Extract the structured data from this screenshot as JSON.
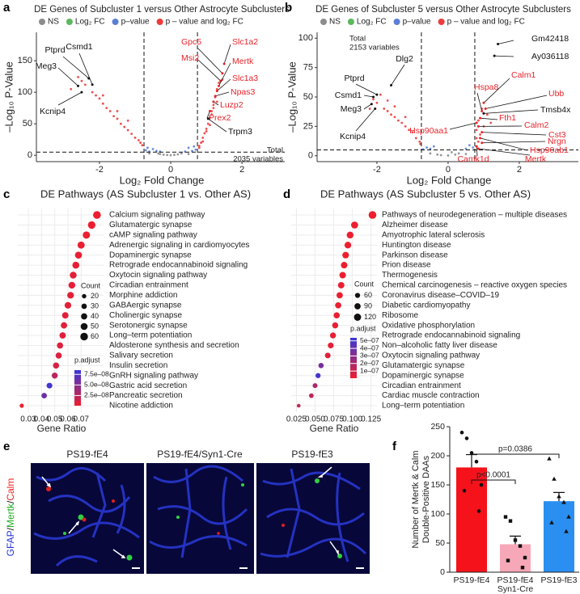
{
  "chart_data": [
    {
      "panel": "a",
      "type": "volcano",
      "title": "DE Genes of Subcluster 1 versus Other Astrocyte Subclusters",
      "xlabel": "Log₂ Fold Change",
      "ylabel": "–Log₁₀ P-Value",
      "xlim": [
        -3.77,
        3.2
      ],
      "ylim": [
        -10,
        195
      ],
      "xticks": [
        -2,
        0,
        2
      ],
      "yticks": [
        0,
        50,
        100,
        150
      ],
      "thresholds": {
        "x": [
          -0.75,
          0.75
        ],
        "y": 5
      },
      "series": [
        {
          "name": "NS",
          "color": "#8c8c8c",
          "x": [
            -0.3,
            -0.2,
            -0.1,
            0,
            0.1,
            0.2,
            0.3,
            -0.35,
            0.5,
            -0.6
          ],
          "y": [
            2,
            1,
            0.5,
            0.2,
            0.8,
            1.5,
            3,
            3,
            2,
            3
          ]
        },
        {
          "name": "Log₂ FC",
          "color": "#5cb85c",
          "x": [],
          "y": []
        },
        {
          "name": "p–value",
          "color": "#5b7fd6",
          "x": [
            -0.7,
            -0.6,
            -0.5,
            -0.4,
            -0.65,
            -0.3,
            0.7,
            0.6,
            0.5,
            0.4,
            0.65
          ],
          "y": [
            8,
            6,
            10,
            7,
            12,
            6,
            9,
            7,
            12,
            6,
            14
          ]
        },
        {
          "name": "p – value and log₂ FC",
          "color": "#ee3b3b",
          "x": [
            -2.6,
            -2.5,
            -2.4,
            -2.3,
            -2.2,
            -2.1,
            -2.0,
            -1.9,
            -1.8,
            -1.7,
            -1.6,
            -1.5,
            -1.4,
            -1.3,
            -1.2,
            -1.1,
            -1.0,
            -0.9,
            -0.85,
            -1.5,
            -1.2,
            -1.9,
            -0.8,
            -2.8,
            0.8,
            0.85,
            0.9,
            0.95,
            1.0,
            1.05,
            1.1,
            1.15,
            1.2,
            1.25,
            1.3,
            1.35,
            1.15,
            1.0,
            1.45,
            0.8,
            1.1,
            1.3,
            0.9,
            1.2
          ],
          "y": [
            124,
            118,
            112,
            122,
            100,
            95,
            90,
            82,
            75,
            70,
            62,
            58,
            50,
            45,
            40,
            34,
            28,
            24,
            20,
            70,
            55,
            95,
            16,
            105,
            12,
            20,
            28,
            35,
            42,
            50,
            60,
            70,
            80,
            92,
            105,
            115,
            65,
            38,
            120,
            15,
            48,
            85,
            22,
            75
          ]
        }
      ],
      "annotations": [
        {
          "text": "Ptprd",
          "x": -2.3,
          "y": 122,
          "color": "#111111"
        },
        {
          "text": "Csmd1",
          "x": -2.2,
          "y": 112,
          "color": "#111111"
        },
        {
          "text": "Meg3",
          "x": -2.6,
          "y": 110,
          "color": "#111111"
        },
        {
          "text": "Kcnip4",
          "x": -2.5,
          "y": 100,
          "color": "#111111"
        },
        {
          "text": "Gpc5",
          "x": 1.45,
          "y": 130,
          "color": "#e8242b"
        },
        {
          "text": "Slc1a2",
          "x": 1.5,
          "y": 145,
          "color": "#e8242b"
        },
        {
          "text": "Msi2",
          "x": 1.4,
          "y": 118,
          "color": "#e8242b"
        },
        {
          "text": "Mertk",
          "x": 1.35,
          "y": 110,
          "color": "#e8242b"
        },
        {
          "text": "Slc1a3",
          "x": 1.3,
          "y": 102,
          "color": "#e8242b"
        },
        {
          "text": "Npas3",
          "x": 1.25,
          "y": 94,
          "color": "#e8242b"
        },
        {
          "text": "Luzp2",
          "x": 1.2,
          "y": 85,
          "color": "#e8242b"
        },
        {
          "text": "Prex2",
          "x": 1.1,
          "y": 70,
          "color": "#e8242b"
        },
        {
          "text": "Trpm3",
          "x": 1.05,
          "y": 58,
          "color": "#111111"
        }
      ],
      "note": [
        "Total",
        "2035 variables"
      ]
    },
    {
      "panel": "b",
      "type": "volcano",
      "title": "DE Genes of Subcluster 5 versus Other Astrocyte Subclusters",
      "xlabel": "Log₂ Fold Change",
      "ylabel": "–Log₁₀ P-Value",
      "xlim": [
        -3.68,
        3.66
      ],
      "ylim": [
        -5,
        105
      ],
      "xticks": [
        -2,
        0,
        2
      ],
      "yticks": [
        0,
        25,
        50,
        75,
        100
      ],
      "thresholds": {
        "x": [
          -0.75,
          0.75
        ],
        "y": 5
      },
      "series": [
        {
          "name": "NS",
          "color": "#8c8c8c",
          "x": [
            -0.3,
            -0.2,
            0,
            0.2,
            0.3,
            0.1,
            -0.5,
            0.5
          ],
          "y": [
            1,
            0.5,
            0.2,
            1,
            2,
            3,
            2,
            1.5
          ]
        },
        {
          "name": "Log₂ FC",
          "color": "#5cb85c",
          "x": [],
          "y": []
        },
        {
          "name": "p–value",
          "color": "#5b7fd6",
          "x": [
            -0.7,
            -0.6,
            -0.5,
            -0.4,
            0.5,
            0.6,
            0.7
          ],
          "y": [
            5.5,
            7,
            6,
            8,
            6,
            9,
            7
          ]
        },
        {
          "name": "p – value and log₂ FC",
          "color": "#ee3b3b",
          "x": [
            -2.1,
            -2.0,
            -1.9,
            -1.8,
            -1.7,
            -1.6,
            -1.5,
            -1.4,
            -1.3,
            -1.2,
            -1.1,
            -1.0,
            -0.9,
            -0.8,
            -1.5,
            -1.2,
            -2.2,
            -1.7,
            -0.78,
            0.8,
            0.85,
            0.9,
            1.0,
            0.85,
            0.95,
            0.8,
            1.1,
            0.8,
            1.2
          ],
          "y": [
            48,
            45,
            52,
            40,
            38,
            35,
            33,
            30,
            28,
            25,
            22,
            20,
            15,
            12,
            42,
            33,
            40,
            47,
            10,
            8,
            12,
            18,
            25,
            30,
            40,
            22,
            35,
            15,
            28
          ]
        }
      ],
      "annotations": [
        {
          "text": "Gm42418",
          "x": 1.4,
          "y": 95,
          "color": "#111111"
        },
        {
          "text": "Ay036118",
          "x": 1.3,
          "y": 85,
          "color": "#111111"
        },
        {
          "text": "Dlg2",
          "x": -1.6,
          "y": 60,
          "color": "#111111"
        },
        {
          "text": "Ptprd",
          "x": -2.0,
          "y": 52,
          "color": "#111111"
        },
        {
          "text": "Csmd1",
          "x": -2.1,
          "y": 50,
          "color": "#111111"
        },
        {
          "text": "Meg3",
          "x": -2.15,
          "y": 44,
          "color": "#111111"
        },
        {
          "text": "Kcnip4",
          "x": -2.05,
          "y": 40,
          "color": "#111111"
        },
        {
          "text": "Hsp90aa1",
          "x": 0.8,
          "y": 28,
          "color": "#e8242b"
        },
        {
          "text": "Hspa8",
          "x": 0.95,
          "y": 38,
          "color": "#e8242b"
        },
        {
          "text": "Calm1",
          "x": 1.0,
          "y": 45,
          "color": "#e8242b"
        },
        {
          "text": "Ubb",
          "x": 1.05,
          "y": 40,
          "color": "#e8242b"
        },
        {
          "text": "Tmsb4x",
          "x": 1.0,
          "y": 36,
          "color": "#111111"
        },
        {
          "text": "Fth1",
          "x": 0.9,
          "y": 32,
          "color": "#e8242b"
        },
        {
          "text": "Calm2",
          "x": 0.85,
          "y": 25,
          "color": "#e8242b"
        },
        {
          "text": "Cst3",
          "x": 0.95,
          "y": 20,
          "color": "#e8242b"
        },
        {
          "text": "Hsp90ab1",
          "x": 0.9,
          "y": 15,
          "color": "#e8242b"
        },
        {
          "text": "Nrgn",
          "x": 0.95,
          "y": 11,
          "color": "#e8242b"
        },
        {
          "text": "Camk1d",
          "x": 0.8,
          "y": 8,
          "color": "#e8242b"
        },
        {
          "text": "Mertk",
          "x": 0.85,
          "y": 6,
          "color": "#e8242b"
        }
      ],
      "note": [
        "Total",
        "2153 variables"
      ]
    },
    {
      "panel": "c",
      "type": "dot",
      "title": "DE Pathways (AS Subcluster 1 vs. Other AS)",
      "xlabel": "Gene Ratio",
      "categories": [
        "Calcium signaling pathway",
        "Glutamatergic synapse",
        "cAMP signaling pathway",
        "Adrenergic signaling in cardiomyocytes",
        "Dopaminergic synapse",
        "Retrograde endocannabinoid signaling",
        "Oxytocin signaling pathway",
        "Circadian entrainment",
        "Morphine addiction",
        "GABAergic synapse",
        "Cholinergic synapse",
        "Serotonergic synapse",
        "Long–term potentiation",
        "Aldosterone synthesis and secretion",
        "Salivary secretion",
        "Insulin secretion",
        "GnRH signaling pathway",
        "Gastric acid secretion",
        "Pancreatic secretion",
        "Nicotine addiction"
      ],
      "values": [
        0.082,
        0.078,
        0.074,
        0.07,
        0.068,
        0.066,
        0.064,
        0.063,
        0.062,
        0.06,
        0.058,
        0.057,
        0.056,
        0.054,
        0.053,
        0.051,
        0.05,
        0.046,
        0.042,
        0.025
      ],
      "counts": [
        62,
        58,
        55,
        52,
        50,
        49,
        48,
        47,
        46,
        45,
        43,
        42,
        42,
        40,
        39,
        38,
        37,
        34,
        31,
        18
      ],
      "p_adjust": [
        2e-09,
        2e-09,
        3e-09,
        3e-09,
        4e-09,
        4e-09,
        5e-09,
        5e-09,
        6e-09,
        6e-09,
        7e-09,
        7e-09,
        8e-09,
        9e-09,
        1e-08,
        1.2e-08,
        2.5e-08,
        8e-08,
        6e-08,
        2e-09
      ],
      "xlim": [
        0.022,
        0.087
      ],
      "xticks": [
        0.03,
        0.04,
        0.05,
        0.06,
        0.07
      ],
      "grid": true,
      "size_title": "Count",
      "size_legend": [
        20,
        30,
        40,
        50,
        60
      ],
      "color_title": "p.adjust",
      "color_range": [
        1e-09,
        8.5e-08
      ],
      "color_ticks": [
        {
          "value": 7.5e-08,
          "label": "7.5e–08"
        },
        {
          "value": 5e-08,
          "label": "5.0e–08"
        },
        {
          "value": 2.5e-08,
          "label": "2.5e–08"
        }
      ]
    },
    {
      "panel": "d",
      "type": "dot",
      "title": "DE Pathways (AS Subcluster 5 vs. Other AS)",
      "xlabel": "Gene Ratio",
      "categories": [
        "Pathways of neurodegeneration – multiple diseases",
        "Alzheimer disease",
        "Amyotrophic lateral sclerosis",
        "Huntington disease",
        "Parkinson disease",
        "Prion disease",
        "Thermogenesis",
        "Chemical carcinogenesis – reactive oxygen species",
        "Coronavirus disease–COVID–19",
        "Diabetic cardiomyopathy",
        "Ribosome",
        "Oxidative phosphorylation",
        "Retrograde endocannabinoid signaling",
        "Non–alcoholic fatty liver disease",
        "Oxytocin signaling pathway",
        "Glutamatergic synapse",
        "Dopaminergic synapse",
        "Circadian entrainment",
        "Cardiac muscle contraction",
        "Long–term potentiation"
      ],
      "values": [
        0.127,
        0.103,
        0.097,
        0.094,
        0.091,
        0.089,
        0.087,
        0.085,
        0.083,
        0.081,
        0.079,
        0.077,
        0.074,
        0.071,
        0.067,
        0.058,
        0.054,
        0.05,
        0.045,
        0.028
      ],
      "counts": [
        140,
        115,
        108,
        105,
        102,
        100,
        98,
        95,
        93,
        90,
        88,
        86,
        83,
        80,
        75,
        65,
        60,
        56,
        50,
        32
      ],
      "p_adjust": [
        1e-08,
        1e-08,
        1e-08,
        1.2e-08,
        1.2e-08,
        1.4e-08,
        1.5e-08,
        1.6e-08,
        1.8e-08,
        2e-08,
        2.2e-08,
        2.4e-08,
        3e-08,
        4e-08,
        5e-08,
        3.5e-07,
        5e-07,
        2e-07,
        1.5e-07,
        1.2e-07
      ],
      "xlim": [
        0.018,
        0.133
      ],
      "xticks": [
        0.025,
        {
          "value": 0.05,
          "label": "0.050"
        },
        0.075,
        {
          "value": 0.1,
          "label": "0.100"
        },
        0.125
      ],
      "grid": true,
      "size_title": "Count",
      "size_legend": [
        60,
        90,
        120
      ],
      "color_title": "p.adjust",
      "color_range": [
        5e-09,
        5.4e-07
      ],
      "color_ticks": [
        {
          "value": 5e-07,
          "label": "5e–07"
        },
        {
          "value": 4e-07,
          "label": "4e–07"
        },
        {
          "value": 3e-07,
          "label": "3e–07"
        },
        {
          "value": 2e-07,
          "label": "2e–07"
        },
        {
          "value": 1e-07,
          "label": "1e–07"
        }
      ]
    },
    {
      "panel": "f",
      "type": "bar",
      "ylabel": [
        "Number of Mertk & Calm",
        "Double-Positive DAAs"
      ],
      "categories": [
        [
          "PS19-fE4"
        ],
        [
          "PS19-fE4",
          "Syn1-Cre"
        ],
        [
          "PS19-fE3"
        ]
      ],
      "values": [
        180,
        48,
        122
      ],
      "errors": [
        22,
        14,
        15
      ],
      "colors": [
        "#f5121b",
        "#f7a8b8",
        "#2a8ff0"
      ],
      "markers": [
        "circle",
        "square",
        "triangle"
      ],
      "points": [
        [
          240,
          230,
          205,
          190,
          150,
          140,
          105
        ],
        [
          95,
          88,
          55,
          45,
          25,
          20,
          8
        ],
        [
          195,
          160,
          130,
          120,
          95,
          85,
          70
        ]
      ],
      "ylim": [
        0,
        250
      ],
      "yticks": [
        0,
        50,
        100,
        150,
        200,
        250
      ],
      "comparisons": [
        {
          "groups": [
            0,
            1
          ],
          "label": "p<0.0001"
        },
        {
          "groups": [
            0,
            2
          ],
          "label": "p=0.0386"
        }
      ]
    }
  ],
  "image_panel": {
    "panel": "e",
    "titles": [
      "PS19-fE4",
      "PS19-fE4/Syn1-Cre",
      "PS19-fE3"
    ],
    "stain_label": [
      "GFAP",
      "/",
      "Mertk",
      "/",
      "Calm"
    ]
  }
}
